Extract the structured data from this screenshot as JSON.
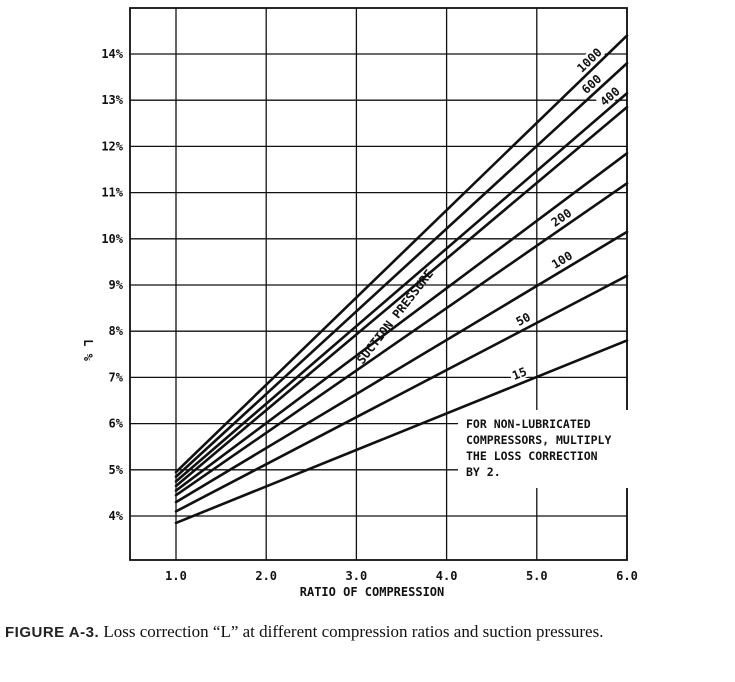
{
  "chart_data": {
    "type": "line",
    "xlabel": "RATIO OF COMPRESSION",
    "ylabel": "L %",
    "xlim": [
      1.0,
      6.0
    ],
    "ylim": [
      4,
      14
    ],
    "x_ticks": [
      "1.0",
      "2.0",
      "3.0",
      "4.0",
      "5.0",
      "6.0"
    ],
    "y_ticks": [
      "4%",
      "5%",
      "6%",
      "7%",
      "8%",
      "9%",
      "10%",
      "11%",
      "12%",
      "13%",
      "14%"
    ],
    "grid": true,
    "series_group_label": "SUCTION PRESSURE",
    "series": [
      {
        "name": "1000",
        "x": [
          1.0,
          6.0
        ],
        "y": [
          4.95,
          14.4
        ]
      },
      {
        "name": "600",
        "x": [
          1.0,
          6.0
        ],
        "y": [
          4.85,
          13.8
        ]
      },
      {
        "name": "400",
        "x": [
          1.0,
          6.0
        ],
        "y": [
          4.75,
          13.15
        ]
      },
      {
        "name": "",
        "x": [
          1.0,
          6.0
        ],
        "y": [
          4.65,
          12.85
        ]
      },
      {
        "name": "",
        "x": [
          1.0,
          6.0
        ],
        "y": [
          4.55,
          11.85
        ]
      },
      {
        "name": "200",
        "x": [
          1.0,
          6.0
        ],
        "y": [
          4.45,
          11.2
        ]
      },
      {
        "name": "100",
        "x": [
          1.0,
          6.0
        ],
        "y": [
          4.3,
          10.15
        ]
      },
      {
        "name": "50",
        "x": [
          1.0,
          6.0
        ],
        "y": [
          4.1,
          9.2
        ]
      },
      {
        "name": "15",
        "x": [
          1.0,
          6.0
        ],
        "y": [
          3.85,
          7.8
        ]
      }
    ],
    "note": [
      "FOR NON-LUBRICATED",
      "COMPRESSORS, MULTIPLY",
      "THE LOSS CORRECTION",
      "BY 2."
    ]
  },
  "caption": {
    "label": "FIGURE A-3.",
    "text": " Loss correction “L” at different compression ratios and suction pressures."
  }
}
